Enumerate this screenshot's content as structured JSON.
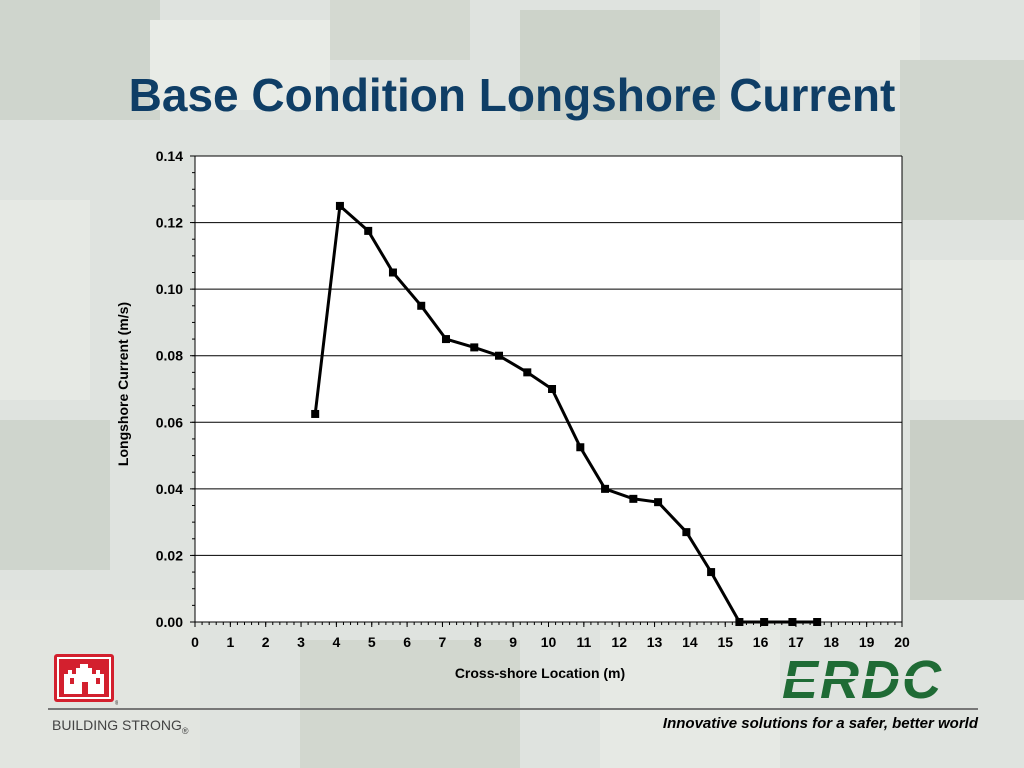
{
  "slide": {
    "title": "Base Condition Longshore Current",
    "footer_left": "BUILDING STRONG",
    "footer_left_mark": "®",
    "tagline": "Innovative solutions for a safer, better world",
    "logo_right_text": "ERDC",
    "colors": {
      "title": "#0f3e66",
      "usace_red": "#d3202e",
      "erdc_green": "#1f6b35"
    }
  },
  "chart_data": {
    "type": "line",
    "title": "",
    "xlabel": "Cross-shore Location (m)",
    "ylabel": "Longshore Current (m/s)",
    "xlim": [
      0,
      20
    ],
    "ylim": [
      0,
      0.14
    ],
    "xticks": [
      "0",
      "1",
      "2",
      "3",
      "4",
      "5",
      "6",
      "7",
      "8",
      "9",
      "10",
      "11",
      "12",
      "13",
      "14",
      "15",
      "16",
      "17",
      "18",
      "19",
      "20"
    ],
    "yticks": [
      "0.00",
      "0.02",
      "0.04",
      "0.06",
      "0.08",
      "0.10",
      "0.12",
      "0.14"
    ],
    "grid": "horizontal",
    "series": [
      {
        "color": "#000000",
        "marker": "square",
        "x": [
          3.4,
          4.1,
          4.9,
          5.6,
          6.4,
          7.1,
          7.9,
          8.6,
          9.4,
          10.1,
          10.9,
          11.6,
          12.4,
          13.1,
          13.9,
          14.6,
          15.4,
          16.1,
          16.9,
          17.6
        ],
        "y": [
          0.0625,
          0.125,
          0.1175,
          0.105,
          0.095,
          0.085,
          0.0825,
          0.08,
          0.075,
          0.07,
          0.0525,
          0.04,
          0.037,
          0.036,
          0.027,
          0.015,
          0.0,
          0.0,
          0.0,
          0.0
        ]
      }
    ]
  }
}
